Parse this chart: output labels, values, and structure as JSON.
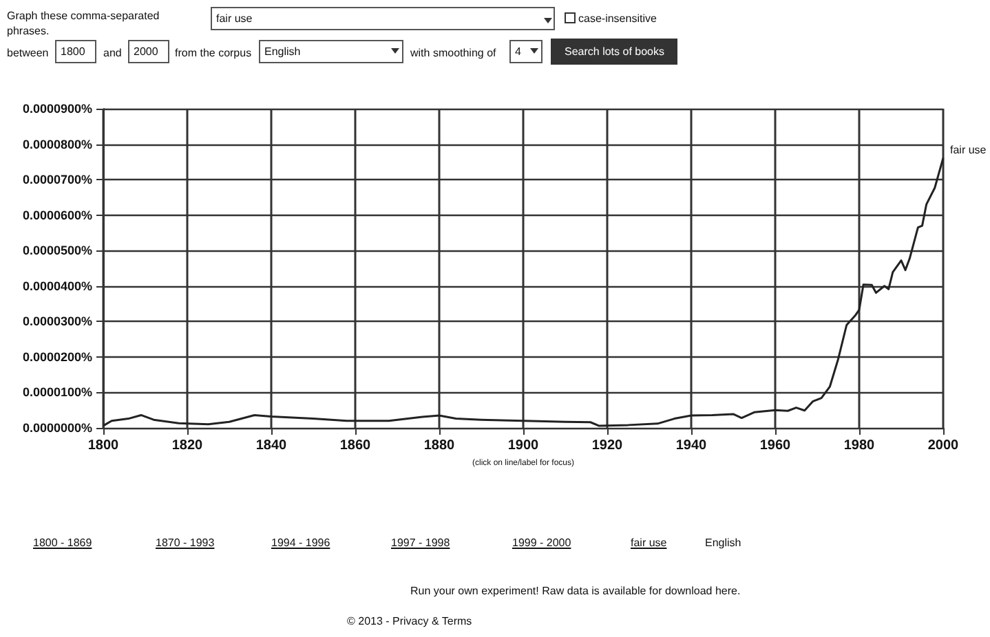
{
  "chart_data": {
    "type": "line",
    "xlabel": "(click on line/label for focus)",
    "x": [
      1800,
      1802,
      1806,
      1809,
      1812,
      1818,
      1825,
      1830,
      1836,
      1840,
      1850,
      1858,
      1868,
      1876,
      1880,
      1884,
      1890,
      1900,
      1910,
      1916,
      1918,
      1925,
      1932,
      1936,
      1940,
      1945,
      1950,
      1952,
      1955,
      1960,
      1963,
      1965,
      1967,
      1969,
      1971,
      1973,
      1975,
      1977,
      1979,
      1980,
      1981,
      1983,
      1984,
      1986,
      1987,
      1988,
      1990,
      1991,
      1992,
      1994,
      1995,
      1996,
      1998,
      2000
    ],
    "series": [
      {
        "name": "fair use",
        "color": "#222222",
        "values": [
          6e-07,
          2e-06,
          2.6e-06,
          3.6e-06,
          2.3e-06,
          1.3e-06,
          1e-06,
          1.7e-06,
          3.6e-06,
          3.2e-06,
          2.6e-06,
          2e-06,
          2e-06,
          3.1e-06,
          3.5e-06,
          2.6e-06,
          2.3e-06,
          2e-06,
          1.7e-06,
          1.6e-06,
          6e-07,
          8e-07,
          1.2e-06,
          2.6e-06,
          3.5e-06,
          3.6e-06,
          3.9e-06,
          2.8e-06,
          4.4e-06,
          5e-06,
          4.8e-06,
          5.7e-06,
          4.9e-06,
          7.5e-06,
          8.4e-06,
          1.16e-05,
          1.94e-05,
          2.9e-05,
          3.16e-05,
          3.33e-05,
          4.04e-05,
          4.03e-05,
          3.81e-05,
          4e-05,
          3.91e-05,
          4.39e-05,
          4.72e-05,
          4.45e-05,
          4.77e-05,
          5.65e-05,
          5.7e-05,
          6.3e-05,
          6.77e-05,
          7.61e-05
        ]
      }
    ],
    "xlim": [
      1800,
      2000
    ],
    "xticks": [
      1800,
      1820,
      1840,
      1860,
      1880,
      1900,
      1920,
      1940,
      1960,
      1980,
      2000
    ],
    "ylim": [
      0,
      9e-05
    ],
    "yticks": [
      {
        "value": 0,
        "label": "0.0000000%"
      },
      {
        "value": 1e-05,
        "label": "0.0000100%"
      },
      {
        "value": 2e-05,
        "label": "0.0000200%"
      },
      {
        "value": 3e-05,
        "label": "0.0000300%"
      },
      {
        "value": 4e-05,
        "label": "0.0000400%"
      },
      {
        "value": 5e-05,
        "label": "0.0000500%"
      },
      {
        "value": 6e-05,
        "label": "0.0000600%"
      },
      {
        "value": 7e-05,
        "label": "0.0000700%"
      },
      {
        "value": 8e-05,
        "label": "0.0000800%"
      },
      {
        "value": 9e-05,
        "label": "0.0000900%"
      }
    ],
    "grid": true,
    "legend": false,
    "marker": "none",
    "line_style": "solid",
    "annotations": [
      "Graph these comma-separated phrases.",
      "fair use",
      "case-insensitive",
      "between",
      "1800",
      "and",
      "2000",
      "from the corpus",
      "English",
      "with smoothing of",
      "4",
      "Search lots of books",
      "1800 - 1869",
      "1870 - 1993",
      "1994 - 1996",
      "1997 - 1998",
      "1999 - 2000",
      "fair use",
      "English",
      "Run your own experiment! Raw data is available for download here.",
      "© 2013 - Privacy & Terms"
    ]
  }
}
